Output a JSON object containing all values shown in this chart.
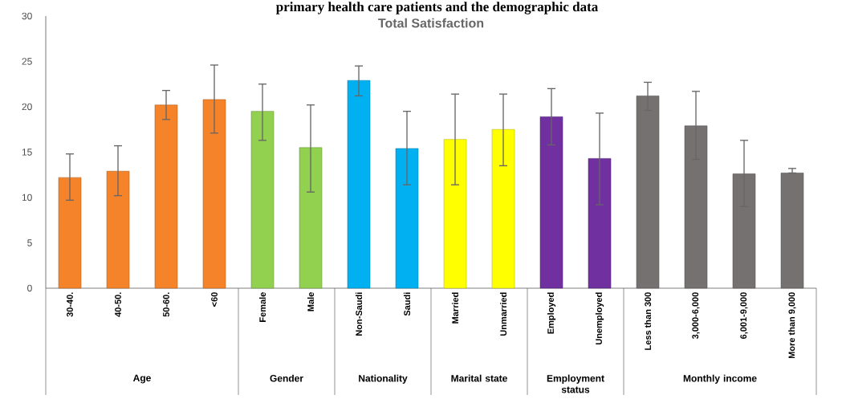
{
  "chart_data": {
    "type": "bar",
    "title": "Total Satisfaction",
    "categories": [
      "30-40.",
      "40-50.",
      "50-60.",
      "<60",
      "Female",
      "Male",
      "Non-Saudi",
      "Saudi",
      "Married",
      "Unmarried",
      "Employed",
      "Unemployed",
      "Less than 300",
      "3,000-6,000",
      "6,001-9,000",
      "More than 9,000"
    ],
    "values": [
      12.2,
      12.9,
      20.2,
      20.8,
      19.5,
      15.5,
      22.9,
      15.4,
      16.4,
      17.5,
      18.9,
      14.3,
      21.2,
      17.9,
      12.6,
      12.7
    ],
    "errors": [
      [
        9.7,
        14.8
      ],
      [
        10.2,
        15.7
      ],
      [
        18.6,
        21.8
      ],
      [
        17.1,
        24.6
      ],
      [
        16.3,
        22.5
      ],
      [
        10.6,
        20.2
      ],
      [
        21.2,
        24.5
      ],
      [
        11.4,
        19.5
      ],
      [
        11.4,
        21.4
      ],
      [
        13.5,
        21.4
      ],
      [
        15.8,
        22.0
      ],
      [
        9.2,
        19.3
      ],
      [
        19.6,
        22.7
      ],
      [
        14.2,
        21.7
      ],
      [
        9.0,
        16.3
      ],
      [
        12.7,
        13.2
      ]
    ],
    "colors": [
      "#f5832a",
      "#f5832a",
      "#f5832a",
      "#f5832a",
      "#92d050",
      "#92d050",
      "#00b0f0",
      "#00b0f0",
      "#ffff00",
      "#ffff00",
      "#7030a0",
      "#7030a0",
      "#767171",
      "#767171",
      "#767171",
      "#767171"
    ],
    "ylim": [
      0,
      30
    ],
    "yticks": [
      0,
      5,
      10,
      15,
      20,
      25,
      30
    ],
    "annotations": [
      "primary health care patients and the demographic data",
      "Age",
      "Gender",
      "Nationality",
      "Marital state",
      "Employment status",
      "Monthly income"
    ]
  }
}
